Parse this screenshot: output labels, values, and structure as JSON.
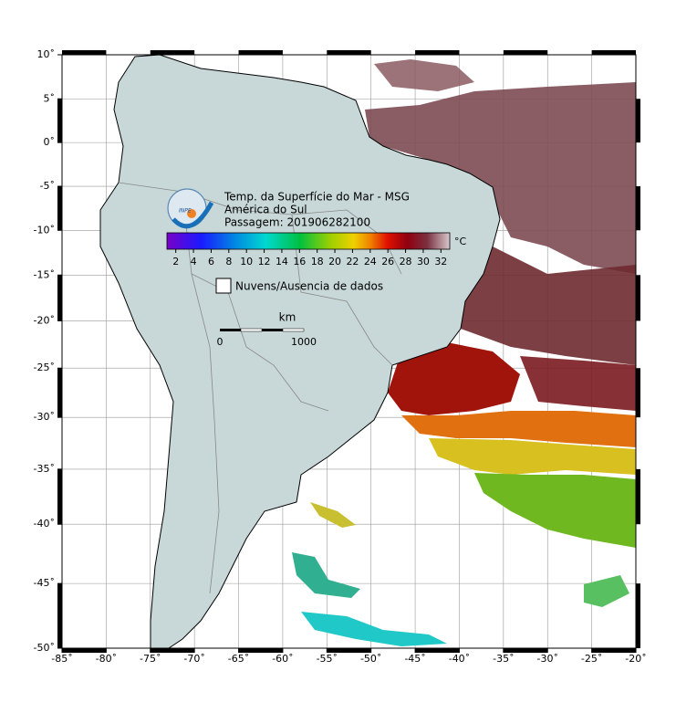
{
  "map": {
    "title": "Temp. da Superfície do Mar - MSG",
    "region": "América do Sul",
    "pass": "Passagem: 201906282100",
    "logo_text": "INPE",
    "xlim": [
      -85,
      -20
    ],
    "ylim": [
      -50,
      10
    ],
    "xticks": [
      {
        "value": -85,
        "label": "-85˚"
      },
      {
        "value": -80,
        "label": "-80˚"
      },
      {
        "value": -75,
        "label": "-75˚"
      },
      {
        "value": -70,
        "label": "-70˚"
      },
      {
        "value": -65,
        "label": "-65˚"
      },
      {
        "value": -60,
        "label": "-60˚"
      },
      {
        "value": -55,
        "label": "-55˚"
      },
      {
        "value": -50,
        "label": "-50˚"
      },
      {
        "value": -45,
        "label": "-45˚"
      },
      {
        "value": -40,
        "label": "-40˚"
      },
      {
        "value": -35,
        "label": "-35˚"
      },
      {
        "value": -30,
        "label": "-30˚"
      },
      {
        "value": -25,
        "label": "-25˚"
      },
      {
        "value": -20,
        "label": "-20˚"
      }
    ],
    "yticks": [
      {
        "value": 10,
        "label": "10˚"
      },
      {
        "value": 5,
        "label": "5˚"
      },
      {
        "value": 0,
        "label": "0˚"
      },
      {
        "value": -5,
        "label": "-5˚"
      },
      {
        "value": -10,
        "label": "-10˚"
      },
      {
        "value": -15,
        "label": "-15˚"
      },
      {
        "value": -20,
        "label": "-20˚"
      },
      {
        "value": -25,
        "label": "-25˚"
      },
      {
        "value": -30,
        "label": "-30˚"
      },
      {
        "value": -35,
        "label": "-35˚"
      },
      {
        "value": -40,
        "label": "-40˚"
      },
      {
        "value": -45,
        "label": "-45˚"
      },
      {
        "value": -50,
        "label": "-50˚"
      }
    ],
    "grid": true,
    "colorbar": {
      "unit": "°C",
      "lim": [
        1,
        33
      ],
      "ticks": [
        2,
        4,
        6,
        8,
        10,
        12,
        14,
        16,
        18,
        20,
        22,
        24,
        26,
        28,
        30,
        32
      ]
    },
    "legend": "Nuvens/Ausencia de dados",
    "scale_bar": {
      "unit": "km",
      "ticks": [
        0,
        1000
      ]
    }
  }
}
